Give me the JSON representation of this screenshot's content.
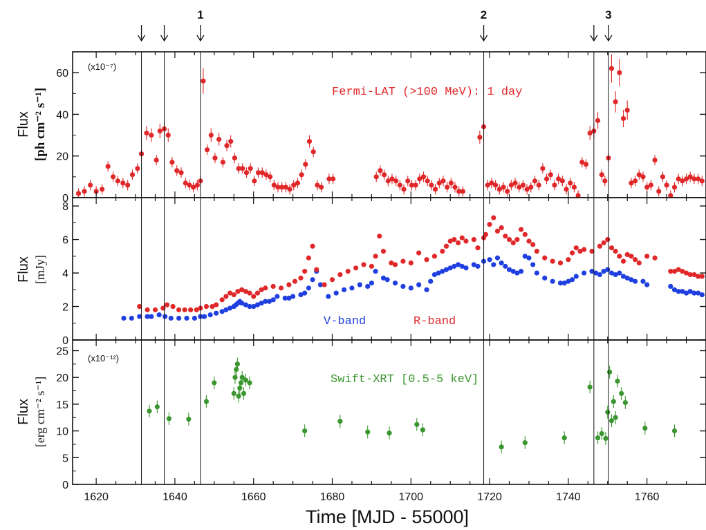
{
  "chart_data": {
    "type": "scatter",
    "xlabel": "Time [MJD - 55000]",
    "xlim": [
      1614,
      1775
    ],
    "xticks": [
      1620,
      1640,
      1660,
      1680,
      1700,
      1720,
      1740,
      1760
    ],
    "xtick_labels": [
      "1620",
      "1640",
      "1660",
      "1680",
      "1700",
      "1720",
      "1740",
      "1760"
    ],
    "marker_lines": [
      1631.5,
      1637.3,
      1646.5,
      1718.5,
      1746.5,
      1750.2
    ],
    "arrows": [
      {
        "x": 1631.5,
        "label": ""
      },
      {
        "x": 1637.3,
        "label": ""
      },
      {
        "x": 1646.5,
        "label": "1"
      },
      {
        "x": 1718.5,
        "label": "2"
      },
      {
        "x": 1746.5,
        "label": ""
      },
      {
        "x": 1750.2,
        "label": "3"
      }
    ],
    "panels": [
      {
        "id": "fermi",
        "ylabel_line1": "Flux",
        "ylabel_line2": "[ph cm⁻² s⁻¹]",
        "ylim": [
          0,
          70
        ],
        "yticks": [
          0,
          20,
          40,
          60
        ],
        "ytick_labels": [
          "0",
          "20",
          "40",
          "60"
        ],
        "scale_label": "(x10⁻⁷)",
        "series": [
          {
            "name": "Fermi-LAT (>100 MeV): 1 day",
            "color": "#e0282a",
            "error_bars": true,
            "x": [
              1615.5,
              1617,
              1618.5,
              1620,
              1621.5,
              1623,
              1624.3,
              1625.5,
              1626.8,
              1628,
              1629.2,
              1630.5,
              1631.5,
              1632.8,
              1634,
              1635.3,
              1636.2,
              1637.3,
              1638.3,
              1639.3,
              1640.5,
              1641.6,
              1642.7,
              1643.7,
              1644.7,
              1645.7,
              1646.5,
              1647.2,
              1648.2,
              1649.2,
              1650.2,
              1651.2,
              1652.2,
              1653.2,
              1654.2,
              1655.2,
              1656.2,
              1657.2,
              1658.2,
              1659.2,
              1660.2,
              1661.2,
              1662.2,
              1663.2,
              1664.2,
              1665.2,
              1666.2,
              1667.2,
              1668.2,
              1669.2,
              1670.2,
              1671.2,
              1672.2,
              1673.2,
              1674.2,
              1675.2,
              1676.2,
              1677.2,
              1679.2,
              1680.2,
              1691.2,
              1692.2,
              1693.2,
              1694.2,
              1695.2,
              1696.2,
              1697.2,
              1698.2,
              1699.2,
              1700.2,
              1701.2,
              1702.2,
              1703.2,
              1704.2,
              1705.2,
              1706.2,
              1707.2,
              1708.2,
              1709.2,
              1710.2,
              1711.2,
              1712.2,
              1713.2,
              1717.5,
              1718.5,
              1719.5,
              1720.5,
              1721.5,
              1722.5,
              1723.5,
              1724.5,
              1725.5,
              1726.5,
              1727.5,
              1728.5,
              1729.5,
              1730.5,
              1731.5,
              1732.5,
              1733.5,
              1734.5,
              1735.5,
              1736.5,
              1737.5,
              1738.5,
              1739.5,
              1740.5,
              1741.5,
              1742.5,
              1743.5,
              1744.5,
              1745.5,
              1746.5,
              1747.5,
              1748.5,
              1749.3,
              1750.2,
              1751,
              1752,
              1753,
              1754,
              1755,
              1756,
              1757,
              1758,
              1759,
              1760,
              1761,
              1762,
              1763,
              1764,
              1765,
              1766,
              1767,
              1768,
              1769,
              1770,
              1771,
              1772,
              1773,
              1774,
              1775
            ],
            "y": [
              2,
              3,
              6,
              3,
              4,
              15,
              10,
              8,
              7,
              6,
              11,
              14,
              21,
              31,
              30,
              18,
              32,
              33,
              30,
              17,
              13,
              12,
              7,
              6,
              5,
              6,
              8,
              56,
              23,
              30,
              19,
              28,
              17,
              25,
              27,
              19,
              14,
              14,
              12,
              14,
              8,
              12,
              12,
              11,
              10,
              6,
              5,
              5,
              5,
              4,
              6,
              7,
              11,
              16,
              27,
              22,
              6,
              5,
              9,
              9,
              10,
              13,
              11,
              8,
              9,
              8,
              6,
              4,
              8,
              6,
              6,
              9,
              10,
              8,
              6,
              4,
              7,
              8,
              5,
              7,
              5,
              3,
              3,
              29,
              34,
              6,
              7,
              6,
              4,
              5,
              3,
              6,
              7,
              5,
              6,
              4,
              5,
              8,
              6,
              14,
              9,
              11,
              6,
              9,
              8,
              4,
              7,
              5,
              1,
              17,
              16,
              31,
              32,
              37,
              11,
              8,
              19,
              62,
              46,
              60,
              38,
              42,
              7,
              8,
              11,
              10,
              5,
              6,
              18,
              3,
              10,
              6,
              1,
              5,
              9,
              8,
              9,
              10,
              9,
              9,
              8,
              7
            ]
          }
        ]
      },
      {
        "id": "optical",
        "ylabel_line1": "Flux",
        "ylabel_line2": "[mJy]",
        "ylim": [
          0,
          8.5
        ],
        "yticks": [
          0,
          2,
          4,
          6,
          8
        ],
        "ytick_labels": [
          "0",
          "2",
          "4",
          "6",
          "8"
        ],
        "series": [
          {
            "name": "V-band",
            "color": "#1f3fe0",
            "error_bars": false,
            "x": [
              1627,
              1629,
              1631,
              1633,
              1634,
              1636,
              1637.5,
              1639,
              1641,
              1643,
              1645,
              1646.5,
              1647.5,
              1649,
              1650.5,
              1652,
              1653,
              1654,
              1655,
              1655.5,
              1656,
              1656.5,
              1657,
              1658,
              1659,
              1660,
              1661,
              1662,
              1663,
              1664,
              1665,
              1666,
              1668,
              1669,
              1670,
              1672,
              1673,
              1674,
              1675,
              1676,
              1677,
              1679,
              1681,
              1683,
              1685,
              1687,
              1689,
              1690,
              1691,
              1693,
              1694,
              1696,
              1698,
              1700,
              1702,
              1704,
              1705,
              1706,
              1707,
              1708,
              1709,
              1710,
              1711,
              1712,
              1713,
              1714,
              1716,
              1717,
              1718.5,
              1720,
              1721,
              1722,
              1723,
              1724,
              1725,
              1726,
              1727,
              1728,
              1729,
              1730,
              1731,
              1732,
              1734,
              1736,
              1738,
              1739,
              1740,
              1741,
              1742,
              1744,
              1746,
              1747,
              1748,
              1749,
              1750,
              1751,
              1752,
              1753,
              1754,
              1755,
              1756,
              1757,
              1759,
              1760,
              1766,
              1767,
              1768,
              1769,
              1770,
              1771,
              1772,
              1773,
              1774,
              1775
            ],
            "y": [
              1.3,
              1.3,
              1.4,
              1.4,
              1.4,
              1.5,
              1.4,
              1.3,
              1.3,
              1.3,
              1.3,
              1.4,
              1.4,
              1.5,
              1.6,
              1.7,
              1.8,
              1.9,
              2.0,
              2.1,
              2.2,
              2.3,
              2.2,
              2.1,
              2.0,
              2.0,
              2.1,
              2.2,
              2.3,
              2.3,
              2.4,
              2.6,
              2.5,
              2.5,
              2.6,
              2.7,
              2.8,
              3.1,
              3.6,
              4.1,
              3.3,
              2.6,
              2.8,
              3.0,
              3.1,
              3.3,
              3.2,
              3.4,
              4.1,
              3.7,
              3.6,
              3.4,
              3.2,
              3.1,
              3.3,
              3.0,
              3.5,
              3.9,
              4.0,
              4.1,
              4.2,
              4.3,
              4.4,
              4.5,
              4.4,
              4.3,
              4.5,
              4.4,
              4.7,
              4.8,
              4.5,
              4.9,
              4.6,
              4.4,
              4.2,
              4.1,
              4.0,
              4.1,
              5.0,
              4.9,
              4.5,
              4.0,
              3.7,
              3.5,
              3.4,
              3.4,
              3.5,
              3.6,
              3.8,
              4.0,
              4.1,
              4.0,
              3.9,
              4.1,
              4.2,
              4.0,
              3.9,
              4.0,
              3.8,
              3.7,
              3.6,
              3.5,
              3.5,
              3.3,
              3.2,
              3.0,
              2.9,
              2.9,
              2.8,
              2.9,
              2.8,
              2.8,
              2.7,
              2.6
            ]
          },
          {
            "name": "R-band",
            "color": "#e0282a",
            "error_bars": false,
            "x": [
              1631,
              1633,
              1635,
              1637,
              1638,
              1639.5,
              1641,
              1642.5,
              1644,
              1645.5,
              1646.5,
              1648,
              1649.5,
              1650.5,
              1652,
              1653,
              1654,
              1655,
              1656,
              1657,
              1658,
              1659,
              1660,
              1661,
              1662,
              1663,
              1665,
              1667,
              1669,
              1670.5,
              1672,
              1673,
              1674,
              1675,
              1676,
              1678,
              1680,
              1682,
              1684,
              1686,
              1688,
              1690,
              1691,
              1692,
              1693,
              1695,
              1696,
              1698,
              1700,
              1702,
              1704,
              1706,
              1708,
              1709,
              1710,
              1711,
              1712,
              1713,
              1714,
              1716,
              1717,
              1718.5,
              1719,
              1720,
              1721,
              1722,
              1723,
              1724,
              1725,
              1726,
              1727,
              1728,
              1729,
              1730,
              1731,
              1732,
              1734,
              1736,
              1738,
              1740,
              1741,
              1742,
              1743,
              1744,
              1746,
              1748,
              1749,
              1750,
              1751,
              1752,
              1753,
              1754,
              1755,
              1756,
              1757,
              1758,
              1760,
              1762,
              1766,
              1767,
              1768,
              1769,
              1770,
              1771,
              1772,
              1773,
              1774,
              1775
            ],
            "y": [
              2.0,
              1.8,
              1.8,
              1.9,
              2.1,
              2.0,
              1.8,
              1.8,
              1.8,
              1.8,
              1.9,
              2.0,
              2.0,
              2.1,
              2.4,
              2.6,
              2.8,
              2.7,
              2.9,
              3.0,
              2.9,
              2.8,
              2.6,
              2.8,
              3.0,
              3.1,
              3.2,
              3.1,
              3.3,
              3.5,
              3.7,
              4.1,
              4.9,
              5.6,
              4.2,
              3.3,
              3.6,
              3.9,
              4.1,
              4.3,
              4.5,
              4.4,
              5.0,
              6.2,
              5.3,
              4.6,
              4.5,
              4.7,
              4.6,
              5.2,
              4.8,
              5.0,
              5.3,
              5.6,
              5.9,
              6.0,
              5.8,
              6.1,
              5.9,
              6.0,
              5.5,
              6.1,
              6.3,
              6.9,
              7.3,
              6.5,
              6.7,
              6.2,
              6.0,
              5.8,
              6.0,
              6.6,
              6.3,
              5.9,
              5.7,
              5.3,
              4.9,
              4.7,
              4.6,
              4.8,
              5.2,
              5.5,
              5.3,
              5.4,
              5.3,
              5.6,
              5.8,
              6.0,
              5.5,
              5.3,
              5.0,
              4.7,
              5.1,
              5.0,
              4.8,
              4.6,
              5.0,
              4.9,
              4.1,
              4.1,
              4.2,
              4.1,
              4.0,
              3.9,
              3.9,
              3.8,
              3.8,
              3.7
            ]
          }
        ]
      },
      {
        "id": "swift",
        "ylabel_line1": "Flux",
        "ylabel_line2": "[erg cm⁻² s⁻¹]",
        "ylim": [
          0,
          27
        ],
        "yticks": [
          0,
          5,
          10,
          15,
          20,
          25
        ],
        "ytick_labels": [
          "0",
          "5",
          "10",
          "15",
          "20",
          "25"
        ],
        "scale_label": "(x10⁻¹²)",
        "series": [
          {
            "name": "Swift-XRT [0.5-5 keV]",
            "color": "#3a962e",
            "error_bars": true,
            "x": [
              1633.5,
              1635.5,
              1638.5,
              1643.5,
              1648,
              1650,
              1655,
              1655.3,
              1655.6,
              1655.9,
              1656.2,
              1656.5,
              1656.8,
              1657.1,
              1657.5,
              1658,
              1659,
              1673,
              1682,
              1689,
              1694.5,
              1701.5,
              1703,
              1723,
              1729,
              1739,
              1745.5,
              1747.5,
              1748.5,
              1749.5,
              1750,
              1750.5,
              1751,
              1751.5,
              1752,
              1752.5,
              1753.5,
              1754.5,
              1759.5,
              1767
            ],
            "y": [
              13.7,
              14.5,
              12.3,
              12.2,
              15.5,
              19,
              17,
              20,
              21.5,
              22.5,
              16.5,
              18,
              19,
              20,
              17,
              19.5,
              19,
              10,
              11.8,
              9.8,
              9.6,
              11.2,
              10.2,
              7,
              7.8,
              8.7,
              18.2,
              8.7,
              9.5,
              8.6,
              13.5,
              21,
              11.9,
              15.5,
              12.5,
              19.3,
              17,
              15.3,
              10.5,
              10
            ]
          }
        ]
      }
    ]
  }
}
